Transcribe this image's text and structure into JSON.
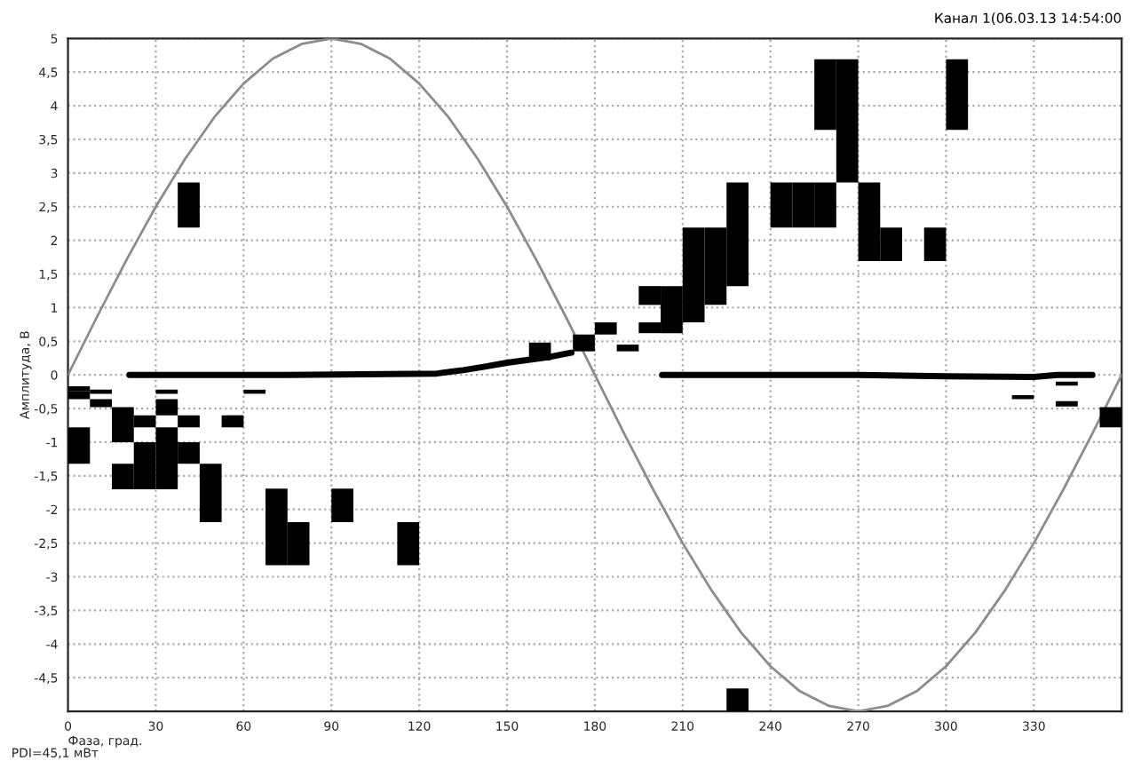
{
  "chart_data": {
    "type": "bar",
    "title": "Канал 1(06.03.13 14:54:00",
    "xlabel": "Фаза, град.",
    "ylabel": "Амплитуда, В",
    "annotations": [
      "PDI=45,1 мВт"
    ],
    "xlim": [
      0,
      360
    ],
    "xticks": [
      0,
      30,
      60,
      90,
      120,
      150,
      180,
      210,
      240,
      270,
      300,
      330
    ],
    "ylim": [
      -5,
      5
    ],
    "yticks": [
      {
        "value": -4.5,
        "label": "-4,5"
      },
      -4,
      {
        "value": -3.5,
        "label": "-3,5"
      },
      -3,
      {
        "value": -2.5,
        "label": "-2,5"
      },
      -2,
      {
        "value": -1.5,
        "label": "-1,5"
      },
      -1,
      {
        "value": -0.5,
        "label": "-0,5"
      },
      0,
      {
        "value": 0.5,
        "label": "0,5"
      },
      1,
      {
        "value": 1.5,
        "label": "1,5"
      },
      2,
      {
        "value": 2.5,
        "label": "2,5"
      },
      3,
      {
        "value": 3.5,
        "label": "3,5"
      },
      4,
      {
        "value": 4.5,
        "label": "4,5"
      },
      5
    ],
    "grid": true,
    "legend": false,
    "series": [
      {
        "type": "line",
        "color": "#8c8c8c",
        "x": [
          0,
          10,
          20,
          30,
          40,
          50,
          60,
          70,
          80,
          90,
          100,
          110,
          120,
          130,
          140,
          150,
          160,
          170,
          180,
          190,
          200,
          210,
          220,
          230,
          240,
          250,
          260,
          270,
          280,
          290,
          300,
          310,
          320,
          330,
          340,
          350,
          360
        ],
        "values": [
          0,
          0.87,
          1.71,
          2.5,
          3.21,
          3.83,
          4.33,
          4.7,
          4.92,
          5,
          4.92,
          4.7,
          4.33,
          3.83,
          3.21,
          2.5,
          1.71,
          0.87,
          0,
          -0.87,
          -1.71,
          -2.5,
          -3.21,
          -3.83,
          -4.33,
          -4.7,
          -4.92,
          -5,
          -4.92,
          -4.7,
          -4.33,
          -3.83,
          -3.21,
          -2.5,
          -1.71,
          -0.87,
          0
        ]
      },
      {
        "color": "#000000",
        "x": [
          3.75,
          11.25,
          18.75,
          26.25,
          33.75,
          41.25,
          48.75,
          56.25,
          63.75,
          71.25,
          78.75,
          93.75,
          116.25,
          161.25,
          176.25,
          183.75,
          191.25,
          198.75,
          206.25,
          213.75,
          221.25,
          228.75,
          243.75,
          251.25,
          258.75,
          266.25,
          273.75,
          281.25,
          296.25,
          303.75,
          326.25,
          341.25,
          356.25
        ],
        "base": [
          -0.24,
          -0.28,
          -1.0,
          -0.78,
          -0.28,
          -0.78,
          -2.19,
          -0.78,
          -0.28,
          -2.83,
          -2.83,
          -2.19,
          -2.83,
          0.22,
          0.35,
          0.6,
          0.35,
          1.04,
          0.62,
          0.78,
          1.04,
          1.32,
          2.19,
          2.19,
          3.64,
          2.86,
          1.69,
          1.69,
          1.69,
          3.64,
          -0.36,
          -0.16,
          -0.78
        ],
        "values": [
          0.07,
          0.06,
          0.52,
          0.18,
          0.06,
          0.18,
          0.87,
          0.18,
          0.06,
          1.14,
          0.64,
          0.5,
          0.64,
          0.26,
          0.25,
          0.18,
          0.1,
          0.28,
          0.7,
          1.41,
          1.15,
          1.54,
          0.67,
          0.67,
          1.05,
          1.83,
          1.17,
          0.5,
          0.5,
          1.05,
          0.06,
          0.06,
          0.3
        ]
      },
      {
        "color": "#000000",
        "x": [
          3.75,
          11.25,
          18.75,
          26.25,
          33.75,
          41.25,
          198.75,
          228.75,
          258.75,
          341.25
        ],
        "base": [
          -0.36,
          -0.48,
          -1.7,
          -1.7,
          -0.6,
          -1.32,
          0.62,
          -5,
          2.19,
          -0.47
        ],
        "values": [
          0.12,
          0.12,
          0.38,
          0.7,
          0.24,
          0.32,
          0.16,
          0.34,
          0.67,
          0.08
        ]
      },
      {
        "color": "#000000",
        "x": [
          3.75,
          33.75,
          41.25
        ],
        "base": [
          -1.32,
          -1.7,
          2.19
        ],
        "values": [
          0.54,
          0.92,
          0.67
        ]
      },
      {
        "type": "line",
        "color": "#000000",
        "x": [
          21,
          75,
          126,
          135,
          142,
          150,
          165,
          172,
          188,
          203,
          270,
          300,
          330,
          338,
          350
        ],
        "values": [
          0,
          0,
          0.02,
          0.07,
          0.12,
          0.18,
          0.27,
          0.33,
          null,
          0,
          0,
          -0.02,
          -0.03,
          0,
          0
        ]
      }
    ]
  }
}
